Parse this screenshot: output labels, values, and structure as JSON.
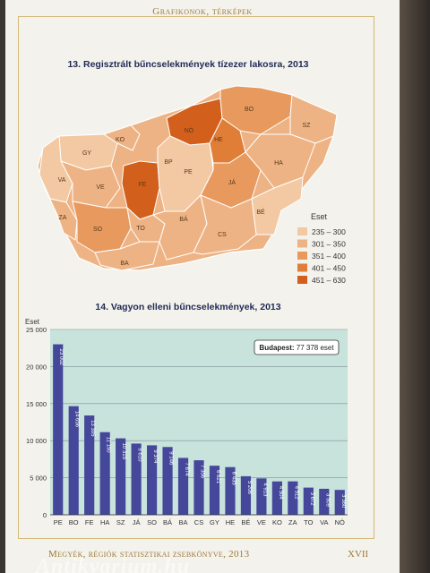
{
  "header": {
    "section_title": "Grafikonok, térképek"
  },
  "footer": {
    "book_title": "Megyék, régiók statisztikai zsebkönyve, 2013",
    "page_number": "XVII",
    "watermark": "Antikvarium.hu"
  },
  "map": {
    "title": "13. Regisztrált bűncselekmények tízezer lakosra, 2013",
    "legend_title": "Eset",
    "legend": [
      {
        "label": "235 – 300",
        "color": "#f2c9a3"
      },
      {
        "label": "301 – 350",
        "color": "#eeb384"
      },
      {
        "label": "351 – 400",
        "color": "#e89a5e"
      },
      {
        "label": "401 – 450",
        "color": "#e07e38"
      },
      {
        "label": "451 – 630",
        "color": "#d2601c"
      }
    ],
    "counties": [
      {
        "code": "GY",
        "class": 1
      },
      {
        "code": "KO",
        "class": 2
      },
      {
        "code": "NÓ",
        "class": 5
      },
      {
        "code": "BO",
        "class": 3
      },
      {
        "code": "SZ",
        "class": 2
      },
      {
        "code": "VA",
        "class": 1
      },
      {
        "code": "VE",
        "class": 2
      },
      {
        "code": "FE",
        "class": 5
      },
      {
        "code": "BP",
        "class": 5
      },
      {
        "code": "PE",
        "class": 1
      },
      {
        "code": "HE",
        "class": 4
      },
      {
        "code": "JÁ",
        "class": 3
      },
      {
        "code": "HA",
        "class": 2
      },
      {
        "code": "ZA",
        "class": 2
      },
      {
        "code": "SO",
        "class": 3
      },
      {
        "code": "TO",
        "class": 2
      },
      {
        "code": "BA",
        "class": 2
      },
      {
        "code": "BÁ",
        "class": 2
      },
      {
        "code": "BÉ",
        "class": 1
      },
      {
        "code": "CS",
        "class": 2
      }
    ]
  },
  "chart_data": {
    "type": "bar",
    "title": "14. Vagyon elleni bűncselekmények, 2013",
    "ylabel": "Eset",
    "ylim": [
      0,
      25000
    ],
    "yticks": [
      "0",
      "5 000",
      "10 000",
      "15 000",
      "20 000",
      "25 000"
    ],
    "grid": true,
    "annotation": {
      "label": "Budapest:",
      "value": "77 378 eset"
    },
    "categories": [
      "PE",
      "BO",
      "FE",
      "HA",
      "SZ",
      "JÁ",
      "SO",
      "BÁ",
      "BA",
      "CS",
      "GY",
      "HE",
      "BÉ",
      "VE",
      "KO",
      "ZA",
      "TO",
      "VA",
      "NÓ"
    ],
    "values": [
      23002,
      14656,
      13395,
      11150,
      10315,
      9610,
      9374,
      9146,
      7674,
      7356,
      6621,
      6435,
      5206,
      4913,
      4504,
      4512,
      3672,
      3509,
      3360
    ],
    "value_labels": [
      "23 002",
      "14 656",
      "13 395",
      "11 150",
      "10 315",
      "9 610",
      "9 374",
      "9 146",
      "7 674",
      "7 356",
      "6 621",
      "6 435",
      "5 206",
      "4 913",
      "4 504",
      "4 512",
      "3 672",
      "3 509",
      "3 360"
    ],
    "bar_color": "#45479a",
    "bg_color": "#c8e3dc"
  }
}
